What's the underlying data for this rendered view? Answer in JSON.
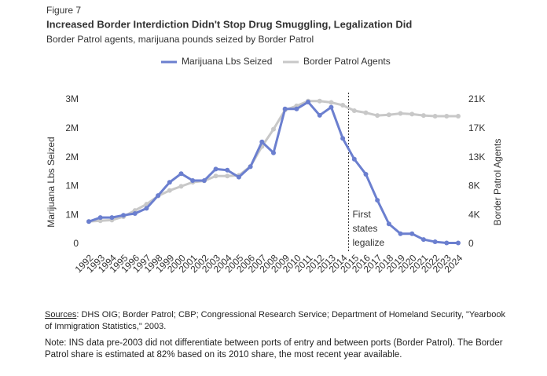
{
  "figure_label": "Figure 7",
  "chart_data": {
    "type": "line",
    "title": "Increased Border Interdiction Didn't Stop Drug Smuggling, Legalization Did",
    "subtitle": "Border Patrol agents, marijuana pounds seized by Border Patrol",
    "y_label": "Marijuana Lbs Seized",
    "y2_label": "Border Patrol Agents",
    "categories": [
      "1992",
      "1993",
      "1994",
      "1995",
      "1996",
      "1997",
      "1998",
      "1999",
      "2000",
      "2001",
      "2002",
      "2003",
      "2004",
      "2005",
      "2006",
      "2007",
      "2008",
      "2009",
      "2010",
      "2011",
      "2012",
      "2013",
      "2014",
      "2015",
      "2016",
      "2017",
      "2018",
      "2019",
      "2020",
      "2021",
      "2022",
      "2023",
      "2024"
    ],
    "series": [
      {
        "name": "Marijuana Lbs Seized",
        "color": "#6b7fcf",
        "values": [
          390000,
          460000,
          460000,
          500000,
          530000,
          620000,
          840000,
          1070000,
          1220000,
          1100000,
          1100000,
          1300000,
          1280000,
          1160000,
          1340000,
          1770000,
          1580000,
          2340000,
          2340000,
          2460000,
          2230000,
          2370000,
          1830000,
          1470000,
          1210000,
          760000,
          350000,
          180000,
          180000,
          80000,
          40000,
          20000,
          20000
        ]
      },
      {
        "name": "Border Patrol Agents",
        "color": "#c8c8c8",
        "axis": "y2",
        "values": [
          3300,
          3400,
          3500,
          4000,
          4900,
          5800,
          7000,
          7800,
          8400,
          9000,
          9200,
          9900,
          9900,
          10000,
          11300,
          14200,
          16700,
          19500,
          20100,
          20800,
          20800,
          20600,
          20200,
          19400,
          19100,
          18700,
          18800,
          19000,
          18900,
          18700,
          18600,
          18600,
          18600
        ]
      }
    ],
    "ylim": [
      0,
      2500000
    ],
    "yticks": [
      {
        "value": 0,
        "label": "0"
      },
      {
        "value": 500000,
        "label": "1M"
      },
      {
        "value": 1000000,
        "label": "1M"
      },
      {
        "value": 1500000,
        "label": "2M"
      },
      {
        "value": 2000000,
        "label": "2M"
      },
      {
        "value": 2500000,
        "label": "3M"
      }
    ],
    "y2lim": [
      0,
      21000
    ],
    "y2ticks": [
      0,
      {
        "value": 4200,
        "label": "4K"
      },
      {
        "value": 8400,
        "label": "8K"
      },
      {
        "value": 12600,
        "label": "13K"
      },
      {
        "value": 16800,
        "label": "17K"
      },
      {
        "value": 21000,
        "label": "21K"
      }
    ],
    "grid": false,
    "legend": "top",
    "annotation": {
      "lines": [
        "First",
        "states",
        "legalize"
      ]
    }
  },
  "footer": {
    "sources_label": "Sources",
    "sources": ": DHS OIG; Border Patrol; CBP; Congressional Research Service; Department of Homeland Security, \"Yearbook of Immigration Statistics,\" 2003.",
    "note": "Note: INS data pre-2003 did not differentiate between ports of entry and between ports (Border Patrol). The Border Patrol share is estimated at 82% based on its 2010 share, the most recent year available."
  }
}
